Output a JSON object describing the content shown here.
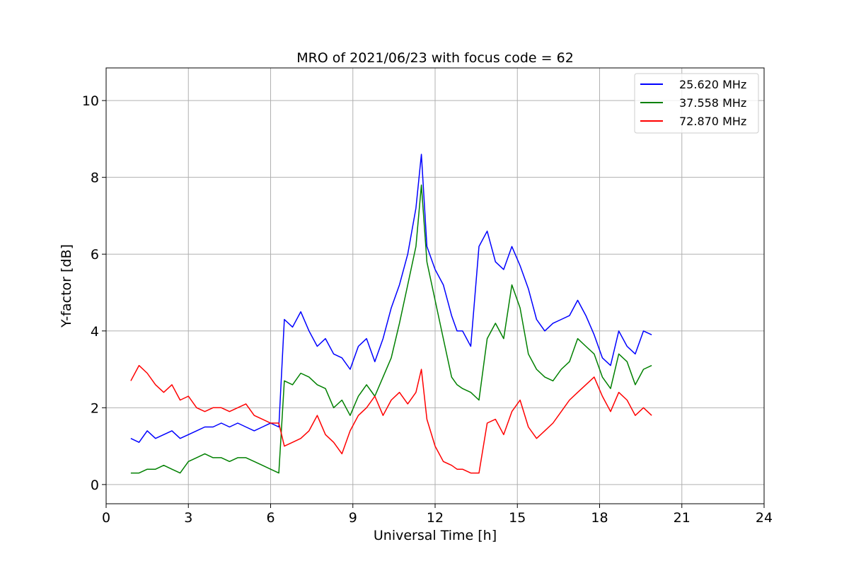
{
  "chart_data": {
    "type": "line",
    "title": "MRO of 2021/06/23 with focus code = 62",
    "xlabel": "Universal Time [h]",
    "ylabel": "Y-factor [dB]",
    "xlim": [
      0,
      24
    ],
    "ylim": [
      -0.5,
      10.85
    ],
    "x_ticks": [
      0,
      3,
      6,
      9,
      12,
      15,
      18,
      21,
      24
    ],
    "y_ticks": [
      0,
      2,
      4,
      6,
      8,
      10
    ],
    "grid": true,
    "legend_position": "top-right",
    "series": [
      {
        "name": "25.620 MHz",
        "color": "#0000ff",
        "x": [
          0.9,
          1.2,
          1.5,
          1.8,
          2.1,
          2.4,
          2.7,
          3.0,
          3.3,
          3.6,
          3.9,
          4.2,
          4.5,
          4.8,
          5.1,
          5.4,
          5.7,
          6.0,
          6.3,
          6.5,
          6.8,
          7.1,
          7.4,
          7.7,
          8.0,
          8.3,
          8.6,
          8.9,
          9.2,
          9.5,
          9.8,
          10.1,
          10.4,
          10.7,
          11.0,
          11.3,
          11.5,
          11.7,
          12.0,
          12.3,
          12.6,
          12.8,
          13.0,
          13.3,
          13.6,
          13.9,
          14.2,
          14.5,
          14.8,
          15.1,
          15.4,
          15.7,
          16.0,
          16.3,
          16.6,
          16.9,
          17.2,
          17.5,
          17.8,
          18.1,
          18.4,
          18.7,
          19.0,
          19.3,
          19.6,
          19.9
        ],
        "values": [
          1.2,
          1.1,
          1.4,
          1.2,
          1.3,
          1.4,
          1.2,
          1.3,
          1.4,
          1.5,
          1.5,
          1.6,
          1.5,
          1.6,
          1.5,
          1.4,
          1.5,
          1.6,
          1.5,
          4.3,
          4.1,
          4.5,
          4.0,
          3.6,
          3.8,
          3.4,
          3.3,
          3.0,
          3.6,
          3.8,
          3.2,
          3.8,
          4.6,
          5.2,
          6.0,
          7.2,
          8.6,
          6.2,
          5.6,
          5.2,
          4.4,
          4.0,
          4.0,
          3.6,
          6.2,
          6.6,
          5.8,
          5.6,
          6.2,
          5.7,
          5.1,
          4.3,
          4.0,
          4.2,
          4.3,
          4.4,
          4.8,
          4.4,
          3.9,
          3.3,
          3.1,
          4.0,
          3.6,
          3.4,
          4.0,
          3.9
        ]
      },
      {
        "name": "37.558 MHz",
        "color": "#008000",
        "x": [
          0.9,
          1.2,
          1.5,
          1.8,
          2.1,
          2.4,
          2.7,
          3.0,
          3.3,
          3.6,
          3.9,
          4.2,
          4.5,
          4.8,
          5.1,
          5.4,
          5.7,
          6.0,
          6.3,
          6.5,
          6.8,
          7.1,
          7.4,
          7.7,
          8.0,
          8.3,
          8.6,
          8.9,
          9.2,
          9.5,
          9.8,
          10.1,
          10.4,
          10.7,
          11.0,
          11.3,
          11.5,
          11.7,
          12.0,
          12.3,
          12.6,
          12.8,
          13.0,
          13.3,
          13.6,
          13.9,
          14.2,
          14.5,
          14.8,
          15.1,
          15.4,
          15.7,
          16.0,
          16.3,
          16.6,
          16.9,
          17.2,
          17.5,
          17.8,
          18.1,
          18.4,
          18.7,
          19.0,
          19.3,
          19.6,
          19.9
        ],
        "values": [
          0.3,
          0.3,
          0.4,
          0.4,
          0.5,
          0.4,
          0.3,
          0.6,
          0.7,
          0.8,
          0.7,
          0.7,
          0.6,
          0.7,
          0.7,
          0.6,
          0.5,
          0.4,
          0.3,
          2.7,
          2.6,
          2.9,
          2.8,
          2.6,
          2.5,
          2.0,
          2.2,
          1.8,
          2.3,
          2.6,
          2.3,
          2.8,
          3.3,
          4.2,
          5.2,
          6.2,
          7.8,
          5.8,
          4.8,
          3.8,
          2.8,
          2.6,
          2.5,
          2.4,
          2.2,
          3.8,
          4.2,
          3.8,
          5.2,
          4.6,
          3.4,
          3.0,
          2.8,
          2.7,
          3.0,
          3.2,
          3.8,
          3.6,
          3.4,
          2.8,
          2.5,
          3.4,
          3.2,
          2.6,
          3.0,
          3.1
        ]
      },
      {
        "name": "72.870 MHz",
        "color": "#ff0000",
        "x": [
          0.9,
          1.2,
          1.5,
          1.8,
          2.1,
          2.4,
          2.7,
          3.0,
          3.3,
          3.6,
          3.9,
          4.2,
          4.5,
          4.8,
          5.1,
          5.4,
          5.7,
          6.0,
          6.3,
          6.5,
          6.8,
          7.1,
          7.4,
          7.7,
          8.0,
          8.3,
          8.6,
          8.9,
          9.2,
          9.5,
          9.8,
          10.1,
          10.4,
          10.7,
          11.0,
          11.3,
          11.5,
          11.7,
          12.0,
          12.3,
          12.6,
          12.8,
          13.0,
          13.3,
          13.6,
          13.9,
          14.2,
          14.5,
          14.8,
          15.1,
          15.4,
          15.7,
          16.0,
          16.3,
          16.6,
          16.9,
          17.2,
          17.5,
          17.8,
          18.1,
          18.4,
          18.7,
          19.0,
          19.3,
          19.6,
          19.9
        ],
        "values": [
          2.7,
          3.1,
          2.9,
          2.6,
          2.4,
          2.6,
          2.2,
          2.3,
          2.0,
          1.9,
          2.0,
          2.0,
          1.9,
          2.0,
          2.1,
          1.8,
          1.7,
          1.6,
          1.6,
          1.0,
          1.1,
          1.2,
          1.4,
          1.8,
          1.3,
          1.1,
          0.8,
          1.4,
          1.8,
          2.0,
          2.3,
          1.8,
          2.2,
          2.4,
          2.1,
          2.4,
          3.0,
          1.7,
          1.0,
          0.6,
          0.5,
          0.4,
          0.4,
          0.3,
          0.3,
          1.6,
          1.7,
          1.3,
          1.9,
          2.2,
          1.5,
          1.2,
          1.4,
          1.6,
          1.9,
          2.2,
          2.4,
          2.6,
          2.8,
          2.3,
          1.9,
          2.4,
          2.2,
          1.8,
          2.0,
          1.8
        ]
      }
    ]
  }
}
